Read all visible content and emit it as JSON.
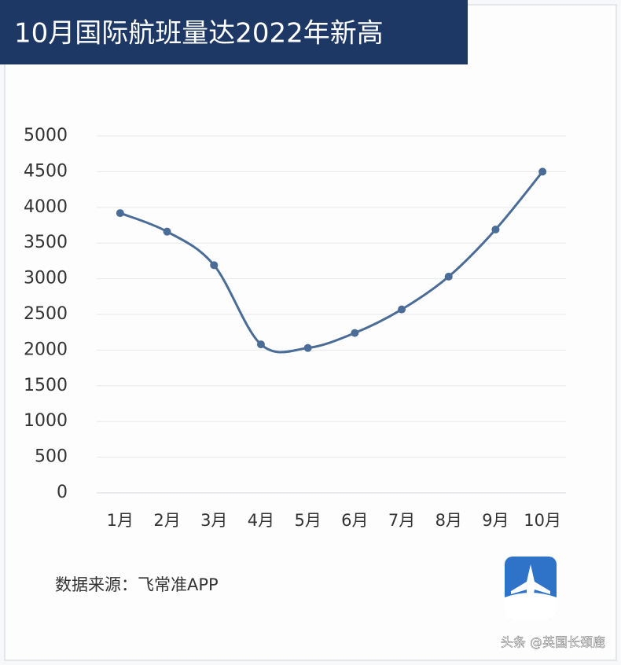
{
  "chart_data": {
    "type": "line",
    "title": "10月国际航班量达2022年新高",
    "categories": [
      "1月",
      "2月",
      "3月",
      "4月",
      "5月",
      "6月",
      "7月",
      "8月",
      "9月",
      "10月"
    ],
    "values": [
      3920,
      3660,
      3190,
      2080,
      2030,
      2240,
      2570,
      3030,
      3690,
      4500
    ],
    "color": "#4a6c97",
    "smooth": true,
    "markers": true,
    "ylim": [
      0,
      5000
    ],
    "yticks": [
      0,
      500,
      1000,
      1500,
      2000,
      2500,
      3000,
      3500,
      4000,
      4500,
      5000
    ],
    "grid": true,
    "source": "数据来源：飞常准APP",
    "watermark": "头条 @英国长颈鹿"
  }
}
